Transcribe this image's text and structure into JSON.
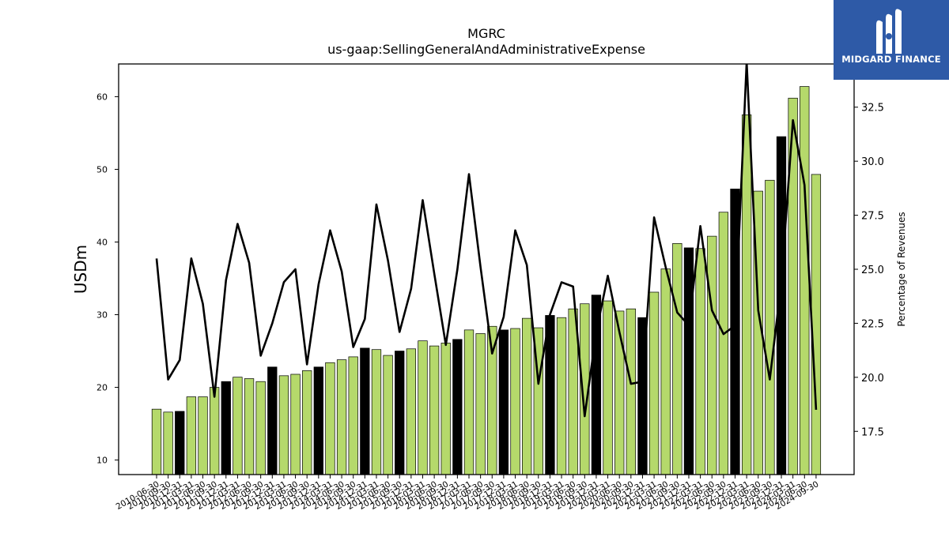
{
  "brand": {
    "name": "MIDGARD FINANCE",
    "bg_color": "#2e5aa7",
    "icon": "midgard-logo-icon"
  },
  "colors": {
    "bar_green": "#b5d96b",
    "bar_black": "#000000",
    "line": "#000000"
  },
  "chart_data": {
    "type": "bar",
    "title": "MGRC",
    "subtitle": "us-gaap:SellingGeneralAndAdministrativeExpense",
    "ylabel": "USDm",
    "y2label": "Percentage of Revenues",
    "ylim": [
      8,
      64.5
    ],
    "y2lim": [
      15.5,
      34.5
    ],
    "yticks": [
      10,
      20,
      30,
      40,
      50,
      60
    ],
    "y2ticks": [
      17.5,
      20.0,
      22.5,
      25.0,
      27.5,
      30.0,
      32.5
    ],
    "y2tick_labels": [
      "17.5",
      "20.0",
      "22.5",
      "25.0",
      "27.5",
      "30.0",
      "32.5"
    ],
    "categories": [
      "2010-06-30",
      "2010-09-30",
      "2010-12-31",
      "2011-03-31",
      "2011-06-30",
      "2011-09-30",
      "2011-12-31",
      "2012-03-31",
      "2012-06-30",
      "2012-09-30",
      "2012-12-31",
      "2013-03-31",
      "2013-06-30",
      "2013-09-30",
      "2013-12-31",
      "2014-03-31",
      "2014-06-30",
      "2014-09-30",
      "2014-12-31",
      "2015-03-31",
      "2015-06-30",
      "2015-09-30",
      "2015-12-31",
      "2016-03-31",
      "2016-06-30",
      "2016-09-30",
      "2016-12-31",
      "2017-03-31",
      "2017-06-30",
      "2017-09-30",
      "2017-12-31",
      "2018-03-31",
      "2018-06-30",
      "2018-09-30",
      "2018-12-31",
      "2019-03-31",
      "2019-06-30",
      "2019-09-30",
      "2019-12-31",
      "2020-03-31",
      "2020-06-30",
      "2020-09-30",
      "2020-12-31",
      "2021-03-31",
      "2021-06-30",
      "2021-09-30",
      "2021-12-31",
      "2022-03-31",
      "2022-06-30",
      "2022-09-30",
      "2022-12-31",
      "2023-03-31",
      "2023-06-30",
      "2023-09-30",
      "2023-12-31",
      "2024-03-31",
      "2024-06-30",
      "2024-09-30"
    ],
    "series": [
      {
        "kind": "bar",
        "values": [
          17.0,
          16.6,
          16.7,
          18.7,
          18.7,
          20.0,
          20.8,
          21.4,
          21.2,
          20.8,
          22.8,
          21.6,
          21.8,
          22.3,
          22.8,
          23.4,
          23.8,
          24.2,
          25.4,
          25.2,
          24.4,
          25.0,
          25.3,
          26.4,
          25.7,
          26.1,
          26.6,
          27.9,
          27.4,
          28.4,
          27.9,
          28.1,
          29.5,
          28.2,
          29.9,
          29.6,
          30.8,
          31.5,
          32.7,
          31.9,
          30.5,
          30.8,
          29.6,
          33.1,
          36.3,
          39.8,
          39.2,
          39.1,
          40.8,
          44.1,
          47.3,
          57.5,
          47.0,
          48.5,
          54.5,
          59.8,
          61.4,
          49.3
        ],
        "colors": [
          "g",
          "g",
          "b",
          "g",
          "g",
          "g",
          "b",
          "g",
          "g",
          "g",
          "b",
          "g",
          "g",
          "g",
          "b",
          "g",
          "g",
          "g",
          "b",
          "g",
          "g",
          "b",
          "g",
          "g",
          "g",
          "g",
          "b",
          "g",
          "g",
          "g",
          "b",
          "g",
          "g",
          "g",
          "b",
          "g",
          "g",
          "g",
          "b",
          "g",
          "g",
          "g",
          "b",
          "g",
          "g",
          "g",
          "b",
          "g",
          "g",
          "g",
          "b",
          "g",
          "g",
          "g",
          "b",
          "g",
          "g",
          "g"
        ]
      },
      {
        "kind": "line",
        "axis": "y2",
        "values": [
          25.5,
          19.9,
          20.8,
          25.5,
          23.4,
          19.1,
          24.5,
          27.1,
          25.3,
          21.0,
          22.5,
          24.4,
          25.0,
          20.6,
          24.3,
          26.8,
          24.9,
          21.4,
          22.7,
          28.0,
          25.4,
          22.1,
          24.1,
          28.2,
          24.8,
          21.5,
          25.0,
          29.4,
          25.1,
          21.1,
          22.8,
          26.8,
          25.2,
          19.7,
          22.9,
          24.4,
          24.2,
          18.2,
          22.1,
          24.7,
          22.1,
          19.7,
          19.8,
          27.4,
          25.1,
          23.0,
          22.4,
          27.0,
          23.1,
          22.0,
          22.4,
          34.6,
          23.1,
          19.9,
          24.4,
          31.9,
          28.9,
          18.5
        ]
      }
    ]
  }
}
